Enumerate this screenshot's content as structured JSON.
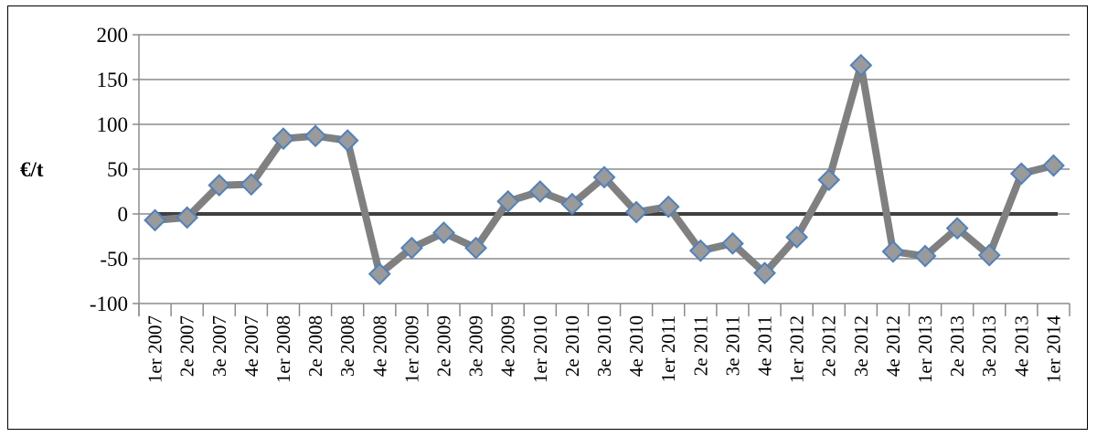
{
  "chart_data": {
    "type": "line",
    "title": "",
    "xlabel": "",
    "ylabel": "€/t",
    "ylim": [
      -100,
      200
    ],
    "yticks": [
      200,
      150,
      100,
      50,
      0,
      -50,
      -100
    ],
    "grid": true,
    "legend": "none",
    "line_color": "#808080",
    "marker_fill": "#9a9a9a",
    "marker_edge": "#4f81bd",
    "zero_line_color": "#404040",
    "categories": [
      "1er 2007",
      "2e 2007",
      "3e 2007",
      "4e 2007",
      "1er 2008",
      "2e 2008",
      "3e 2008",
      "4e 2008",
      "1er 2009",
      "2e 2009",
      "3e 2009",
      "4e 2009",
      "1er 2010",
      "2e 2010",
      "3e 2010",
      "4e 2010",
      "1er 2011",
      "2e 2011",
      "3e 2011",
      "4e 2011",
      "1er 2012",
      "2e 2012",
      "3e 2012",
      "4e 2012",
      "1er 2013",
      "2e 2013",
      "3e 2013",
      "4e 2013",
      "1er 2014"
    ],
    "values": [
      -7,
      -4,
      32,
      33,
      84,
      87,
      82,
      -67,
      -38,
      -21,
      -38,
      14,
      25,
      11,
      41,
      2,
      8,
      -41,
      -33,
      -66,
      -26,
      38,
      166,
      -42,
      -47,
      -16,
      -46,
      45,
      54
    ]
  }
}
